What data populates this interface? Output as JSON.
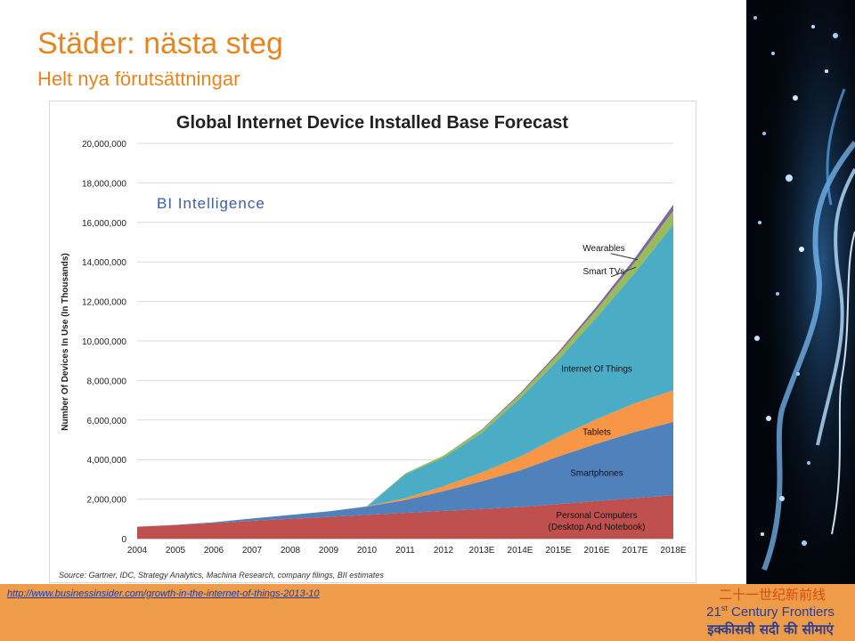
{
  "slide": {
    "title": "Städer: nästa steg",
    "subtitle": "Helt nya förutsättningar",
    "link": "http://www.businessinsider.com/growth-in-the-internet-of-things-2013-10",
    "footer_cn": "二十一世纪新前线",
    "footer_en_prefix": "21",
    "footer_en_sup": "st",
    "footer_en_suffix": " Century Frontiers",
    "footer_hi": "इक्कीसवी सदी की सीमाएं"
  },
  "colors": {
    "accent": "#e8841f",
    "personal_computers": "#c0504d",
    "smartphones": "#4f81bd",
    "tablets": "#f79646",
    "iot": "#4bacc6",
    "smart_tvs": "#9bbb59",
    "wearables": "#8064a2"
  },
  "chart_data": {
    "type": "area",
    "stacked": true,
    "title": "Global Internet Device Installed Base Forecast",
    "watermark": "BI Intelligence",
    "ylabel": "Number Of Devices In Use (In Thousands)",
    "source": "Source: Gartner, IDC, Strategy Analytics, Machina Research, company filings, BII estimates",
    "categories": [
      "2004",
      "2005",
      "2006",
      "2007",
      "2008",
      "2009",
      "2010",
      "2011",
      "2012",
      "2013E",
      "2014E",
      "2015E",
      "2016E",
      "2017E",
      "2018E"
    ],
    "ylim": [
      0,
      20000000
    ],
    "yticks": [
      0,
      2000000,
      4000000,
      6000000,
      8000000,
      10000000,
      12000000,
      14000000,
      16000000,
      18000000,
      20000000
    ],
    "ytick_labels": [
      "0",
      "2,000,000",
      "4,000,000",
      "6,000,000",
      "8,000,000",
      "10,000,000",
      "12,000,000",
      "14,000,000",
      "16,000,000",
      "18,000,000",
      "20,000,000"
    ],
    "grid": true,
    "series": [
      {
        "name": "Personal Computers (Desktop And Notebook)",
        "label_lines": [
          "Personal Computers",
          "(Desktop And Notebook)"
        ],
        "color_key": "personal_computers",
        "values": [
          600000,
          680000,
          780000,
          900000,
          1000000,
          1100000,
          1200000,
          1300000,
          1400000,
          1500000,
          1600000,
          1750000,
          1900000,
          2050000,
          2200000
        ]
      },
      {
        "name": "Smartphones",
        "label_lines": [
          "Smartphones"
        ],
        "color_key": "smartphones",
        "values": [
          0,
          20000,
          50000,
          120000,
          200000,
          280000,
          420000,
          650000,
          1000000,
          1400000,
          1850000,
          2400000,
          2900000,
          3350000,
          3700000
        ]
      },
      {
        "name": "Tablets",
        "label_lines": [
          "Tablets"
        ],
        "color_key": "tablets",
        "values": [
          0,
          0,
          0,
          0,
          0,
          0,
          20000,
          100000,
          250000,
          450000,
          700000,
          1000000,
          1250000,
          1450000,
          1600000
        ]
      },
      {
        "name": "Internet Of Things",
        "label_lines": [
          "Internet Of Things"
        ],
        "color_key": "iot",
        "values": [
          0,
          0,
          0,
          0,
          0,
          0,
          0,
          1200000,
          1450000,
          2000000,
          2950000,
          3900000,
          5150000,
          6600000,
          8400000
        ]
      },
      {
        "name": "Smart TVs",
        "label_lines": [
          "Smart TVs"
        ],
        "color_key": "smart_tvs",
        "values": [
          0,
          0,
          0,
          0,
          0,
          0,
          0,
          50000,
          100000,
          150000,
          200000,
          300000,
          400000,
          550000,
          700000
        ]
      },
      {
        "name": "Wearables",
        "label_lines": [
          "Wearables"
        ],
        "color_key": "wearables",
        "values": [
          0,
          0,
          0,
          0,
          0,
          0,
          0,
          0,
          0,
          30000,
          60000,
          100000,
          150000,
          200000,
          300000
        ]
      }
    ]
  }
}
